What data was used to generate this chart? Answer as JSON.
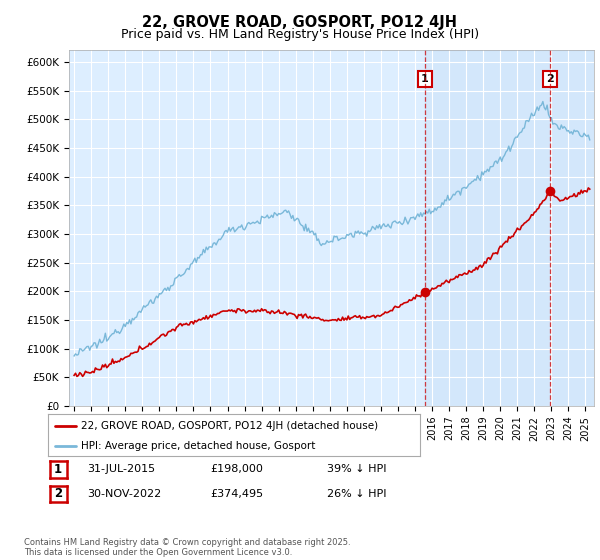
{
  "title": "22, GROVE ROAD, GOSPORT, PO12 4JH",
  "subtitle": "Price paid vs. HM Land Registry's House Price Index (HPI)",
  "ylabel_ticks": [
    "£0",
    "£50K",
    "£100K",
    "£150K",
    "£200K",
    "£250K",
    "£300K",
    "£350K",
    "£400K",
    "£450K",
    "£500K",
    "£550K",
    "£600K"
  ],
  "ytick_values": [
    0,
    50000,
    100000,
    150000,
    200000,
    250000,
    300000,
    350000,
    400000,
    450000,
    500000,
    550000,
    600000
  ],
  "ylim": [
    0,
    620000
  ],
  "xlim_start": 1994.7,
  "xlim_end": 2025.5,
  "vline1_x": 2015.58,
  "vline2_x": 2022.92,
  "point1_x": 2015.58,
  "point1_y": 198000,
  "point2_x": 2022.92,
  "point2_y": 374495,
  "sale_color": "#cc0000",
  "hpi_color": "#7ab8d9",
  "hpi_fill_color": "#ddeeff",
  "vline_color": "#cc0000",
  "background_color": "#ddeeff",
  "legend_label_sale": "22, GROVE ROAD, GOSPORT, PO12 4JH (detached house)",
  "legend_label_hpi": "HPI: Average price, detached house, Gosport",
  "table_row1": [
    "1",
    "31-JUL-2015",
    "£198,000",
    "39% ↓ HPI"
  ],
  "table_row2": [
    "2",
    "30-NOV-2022",
    "£374,495",
    "26% ↓ HPI"
  ],
  "footer": "Contains HM Land Registry data © Crown copyright and database right 2025.\nThis data is licensed under the Open Government Licence v3.0.",
  "title_fontsize": 10.5,
  "subtitle_fontsize": 9
}
